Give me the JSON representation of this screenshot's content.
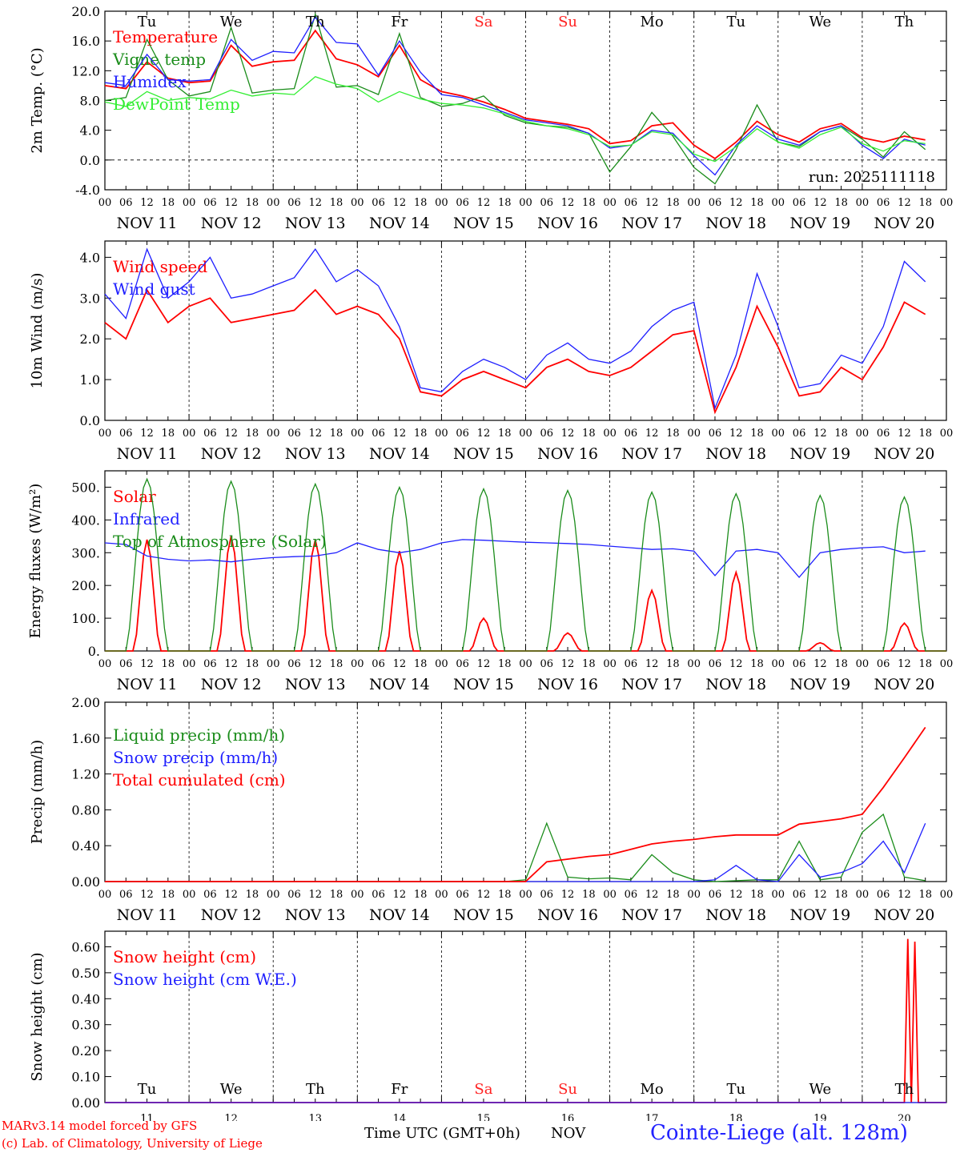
{
  "colors": {
    "red": "#ff0000",
    "darkgreen": "#1a8c1a",
    "blue": "#1f1fff",
    "lightgreen": "#32ee32",
    "weekend": "#ff2020"
  },
  "day_names": [
    "Tu",
    "We",
    "Th",
    "Fr",
    "Sa",
    "Su",
    "Mo",
    "Tu",
    "We",
    "Th"
  ],
  "weekend_flags": [
    false,
    false,
    false,
    false,
    true,
    true,
    false,
    false,
    false,
    false
  ],
  "date_labels": [
    "NOV 11",
    "NOV 12",
    "NOV 13",
    "NOV 14",
    "NOV 15",
    "NOV 16",
    "NOV 17",
    "NOV 18",
    "NOV 19",
    "NOV 20"
  ],
  "day_numbers": [
    "11",
    "12",
    "13",
    "14",
    "15",
    "16",
    "17",
    "18",
    "19",
    "20"
  ],
  "hour_ticks": [
    "00",
    "06",
    "12",
    "18"
  ],
  "hour_ticks_last": "00",
  "footer": {
    "credit1": "MARv3.14 model forced by GFS",
    "credit2": "(c) Lab. of Climatology, University of Liege",
    "xlabel": "Time UTC (GMT+0h)",
    "month": "NOV",
    "station": "Cointe-Liege (alt. 128m)"
  },
  "chart_data": [
    {
      "type": "line",
      "ylabel": "2m Temp. (°C)",
      "ylim": [
        -4,
        20
      ],
      "yticks": [
        "-4.0",
        "0.0",
        "4.0",
        "8.0",
        "12.0",
        "16.0",
        "20.0"
      ],
      "ytick_values": [
        -4,
        0,
        4,
        8,
        12,
        16,
        20
      ],
      "zero_line": true,
      "annotation": "run: 2025111118",
      "x_hours": [
        0,
        6,
        12,
        18,
        24,
        30,
        36,
        42,
        48,
        54,
        60,
        66,
        72,
        78,
        84,
        90,
        96,
        102,
        108,
        114,
        120,
        126,
        132,
        138,
        144,
        150,
        156,
        162,
        168,
        174,
        180,
        186,
        192,
        198,
        204,
        210,
        216,
        222,
        228,
        234
      ],
      "series": [
        {
          "name": "Temperature",
          "color": "red",
          "values": [
            10.0,
            9.6,
            13.2,
            11.0,
            10.4,
            10.6,
            15.4,
            12.6,
            13.2,
            13.4,
            17.4,
            13.6,
            12.8,
            11.2,
            15.4,
            10.8,
            9.2,
            8.6,
            7.8,
            6.8,
            5.6,
            5.2,
            4.8,
            4.2,
            2.2,
            2.6,
            4.6,
            5.0,
            2.0,
            0.2,
            2.4,
            5.2,
            3.4,
            2.4,
            4.2,
            4.9,
            3.0,
            2.4,
            3.2,
            2.7
          ]
        },
        {
          "name": "Vigne temp",
          "color": "darkgreen",
          "values": [
            8.0,
            8.4,
            16.2,
            10.8,
            8.6,
            9.2,
            17.8,
            9.0,
            9.4,
            9.6,
            19.6,
            9.8,
            10.0,
            8.8,
            17.0,
            8.4,
            7.2,
            7.6,
            8.6,
            6.0,
            5.0,
            4.6,
            4.4,
            3.6,
            -1.6,
            1.8,
            6.4,
            3.2,
            -1.0,
            -3.2,
            1.4,
            7.4,
            2.4,
            1.8,
            3.8,
            4.6,
            2.8,
            0.4,
            3.8,
            1.4
          ]
        },
        {
          "name": "Humidex",
          "color": "blue",
          "values": [
            10.4,
            10.0,
            14.2,
            10.8,
            10.6,
            10.8,
            16.2,
            13.4,
            14.6,
            14.4,
            19.2,
            15.8,
            15.6,
            11.4,
            16.0,
            11.8,
            8.8,
            8.4,
            7.4,
            6.4,
            5.4,
            5.0,
            4.6,
            3.6,
            1.6,
            2.0,
            4.0,
            3.6,
            0.6,
            -2.0,
            2.0,
            4.6,
            2.8,
            2.0,
            3.8,
            4.6,
            2.0,
            0.2,
            2.8,
            2.0
          ]
        },
        {
          "name": "DewPoint Temp",
          "color": "lightgreen",
          "values": [
            7.8,
            7.2,
            9.2,
            8.0,
            8.4,
            8.2,
            9.4,
            8.6,
            9.0,
            8.8,
            11.2,
            10.2,
            9.6,
            7.8,
            9.2,
            8.2,
            7.6,
            7.4,
            7.0,
            6.2,
            5.2,
            4.6,
            4.2,
            3.4,
            1.8,
            2.0,
            3.8,
            3.4,
            0.8,
            -0.2,
            1.8,
            4.2,
            2.4,
            1.6,
            3.4,
            4.4,
            2.2,
            1.2,
            2.6,
            2.2
          ]
        }
      ]
    },
    {
      "type": "line",
      "ylabel": "10m Wind (m/s)",
      "ylim": [
        0,
        4.4
      ],
      "yticks": [
        "0.0",
        "1.0",
        "2.0",
        "3.0",
        "4.0"
      ],
      "ytick_values": [
        0,
        1,
        2,
        3,
        4
      ],
      "x_hours": [
        0,
        6,
        12,
        18,
        24,
        30,
        36,
        42,
        48,
        54,
        60,
        66,
        72,
        78,
        84,
        90,
        96,
        102,
        108,
        114,
        120,
        126,
        132,
        138,
        144,
        150,
        156,
        162,
        168,
        174,
        180,
        186,
        192,
        198,
        204,
        210,
        216,
        222,
        228,
        234
      ],
      "series": [
        {
          "name": "Wind speed",
          "color": "red",
          "values": [
            2.4,
            2.0,
            3.2,
            2.4,
            2.8,
            3.0,
            2.4,
            2.5,
            2.6,
            2.7,
            3.2,
            2.6,
            2.8,
            2.6,
            2.0,
            0.7,
            0.6,
            1.0,
            1.2,
            1.0,
            0.8,
            1.3,
            1.5,
            1.2,
            1.1,
            1.3,
            1.7,
            2.1,
            2.2,
            0.2,
            1.3,
            2.8,
            1.8,
            0.6,
            0.7,
            1.3,
            1.0,
            1.8,
            2.9,
            2.6
          ]
        },
        {
          "name": "Wind gust",
          "color": "blue",
          "values": [
            3.1,
            2.5,
            4.2,
            3.0,
            3.4,
            4.0,
            3.0,
            3.1,
            3.3,
            3.5,
            4.2,
            3.4,
            3.7,
            3.3,
            2.3,
            0.8,
            0.7,
            1.2,
            1.5,
            1.3,
            1.0,
            1.6,
            1.9,
            1.5,
            1.4,
            1.7,
            2.3,
            2.7,
            2.9,
            0.3,
            1.6,
            3.6,
            2.3,
            0.8,
            0.9,
            1.6,
            1.4,
            2.3,
            3.9,
            3.4
          ]
        }
      ]
    },
    {
      "type": "line",
      "ylabel": "Energy fluxes (W/m²)",
      "ylim": [
        0,
        550
      ],
      "yticks": [
        "0.",
        "100.",
        "200.",
        "300.",
        "400.",
        "500."
      ],
      "ytick_values": [
        0,
        100,
        200,
        300,
        400,
        500
      ],
      "x_hours": [
        0,
        6,
        12,
        18,
        24,
        30,
        36,
        42,
        48,
        54,
        60,
        66,
        72,
        78,
        84,
        90,
        96,
        102,
        108,
        114,
        120,
        126,
        132,
        138,
        144,
        150,
        156,
        162,
        168,
        174,
        180,
        186,
        192,
        198,
        204,
        210,
        216,
        222,
        228,
        234
      ],
      "series": [
        {
          "name": "Solar",
          "color": "red",
          "daily_peaks": [
            340,
            350,
            340,
            305,
            100,
            55,
            185,
            240,
            25,
            85
          ]
        },
        {
          "name": "Infrared",
          "color": "blue",
          "values": [
            330,
            325,
            290,
            280,
            275,
            278,
            272,
            280,
            285,
            288,
            290,
            300,
            330,
            310,
            300,
            310,
            330,
            340,
            338,
            335,
            332,
            330,
            328,
            325,
            320,
            315,
            310,
            312,
            305,
            230,
            305,
            310,
            300,
            225,
            300,
            310,
            315,
            318,
            300,
            305
          ]
        },
        {
          "name": "Top of Atmosphere (Solar)",
          "color": "darkgreen",
          "daily_peaks": [
            525,
            518,
            510,
            500,
            495,
            490,
            485,
            480,
            475,
            470
          ]
        }
      ]
    },
    {
      "type": "line",
      "ylabel": "Precip (mm/h)",
      "ylim": [
        0,
        2.0
      ],
      "yticks": [
        "0.00",
        "0.40",
        "0.80",
        "1.20",
        "1.60",
        "2.00"
      ],
      "ytick_values": [
        0,
        0.4,
        0.8,
        1.2,
        1.6,
        2.0
      ],
      "x_hours": [
        0,
        6,
        12,
        18,
        24,
        30,
        36,
        42,
        48,
        54,
        60,
        66,
        72,
        78,
        84,
        90,
        96,
        102,
        108,
        114,
        120,
        126,
        132,
        138,
        144,
        150,
        156,
        162,
        168,
        174,
        180,
        186,
        192,
        198,
        204,
        210,
        216,
        222,
        228,
        234
      ],
      "series": [
        {
          "name": "Liquid precip (mm/h)",
          "color": "darkgreen",
          "values": [
            0,
            0,
            0,
            0,
            0,
            0,
            0,
            0,
            0,
            0,
            0,
            0,
            0,
            0,
            0,
            0,
            0,
            0,
            0,
            0,
            0.02,
            0.65,
            0.05,
            0.03,
            0.04,
            0.02,
            0.3,
            0.1,
            0.02,
            0.0,
            0.01,
            0.02,
            0.02,
            0.45,
            0.02,
            0.05,
            0.55,
            0.75,
            0.05,
            0.01
          ]
        },
        {
          "name": "Snow precip (mm/h)",
          "color": "blue",
          "values": [
            0,
            0,
            0,
            0,
            0,
            0,
            0,
            0,
            0,
            0,
            0,
            0,
            0,
            0,
            0,
            0,
            0,
            0,
            0,
            0,
            0,
            0,
            0,
            0,
            0,
            0,
            0,
            0,
            0,
            0.02,
            0.18,
            0.02,
            0.0,
            0.3,
            0.05,
            0.1,
            0.2,
            0.45,
            0.1,
            0.65
          ]
        },
        {
          "name": "Total cumulated (cm)",
          "color": "red",
          "values": [
            0,
            0,
            0,
            0,
            0,
            0,
            0,
            0,
            0,
            0,
            0,
            0,
            0,
            0,
            0,
            0,
            0,
            0,
            0,
            0,
            0.0,
            0.22,
            0.25,
            0.28,
            0.3,
            0.36,
            0.42,
            0.45,
            0.47,
            0.5,
            0.52,
            0.52,
            0.52,
            0.64,
            0.67,
            0.7,
            0.75,
            1.05,
            1.38,
            1.72
          ]
        }
      ]
    },
    {
      "type": "line",
      "ylabel": "Snow height (cm)",
      "ylim": [
        0,
        0.66
      ],
      "yticks": [
        "0.00",
        "0.10",
        "0.20",
        "0.30",
        "0.40",
        "0.50",
        "0.60"
      ],
      "ytick_values": [
        0,
        0.1,
        0.2,
        0.3,
        0.4,
        0.5,
        0.6
      ],
      "x_hours": [
        0,
        228,
        229,
        230,
        231,
        232,
        233,
        234,
        240
      ],
      "series": [
        {
          "name": "Snow height (cm)",
          "color": "red",
          "values": [
            0,
            0,
            0.63,
            0,
            0.62,
            0,
            0,
            0,
            0
          ]
        },
        {
          "name": "Snow height (cm W.E.)",
          "color": "blue",
          "values": [
            0,
            0,
            0,
            0,
            0,
            0,
            0,
            0,
            0
          ]
        }
      ]
    }
  ]
}
